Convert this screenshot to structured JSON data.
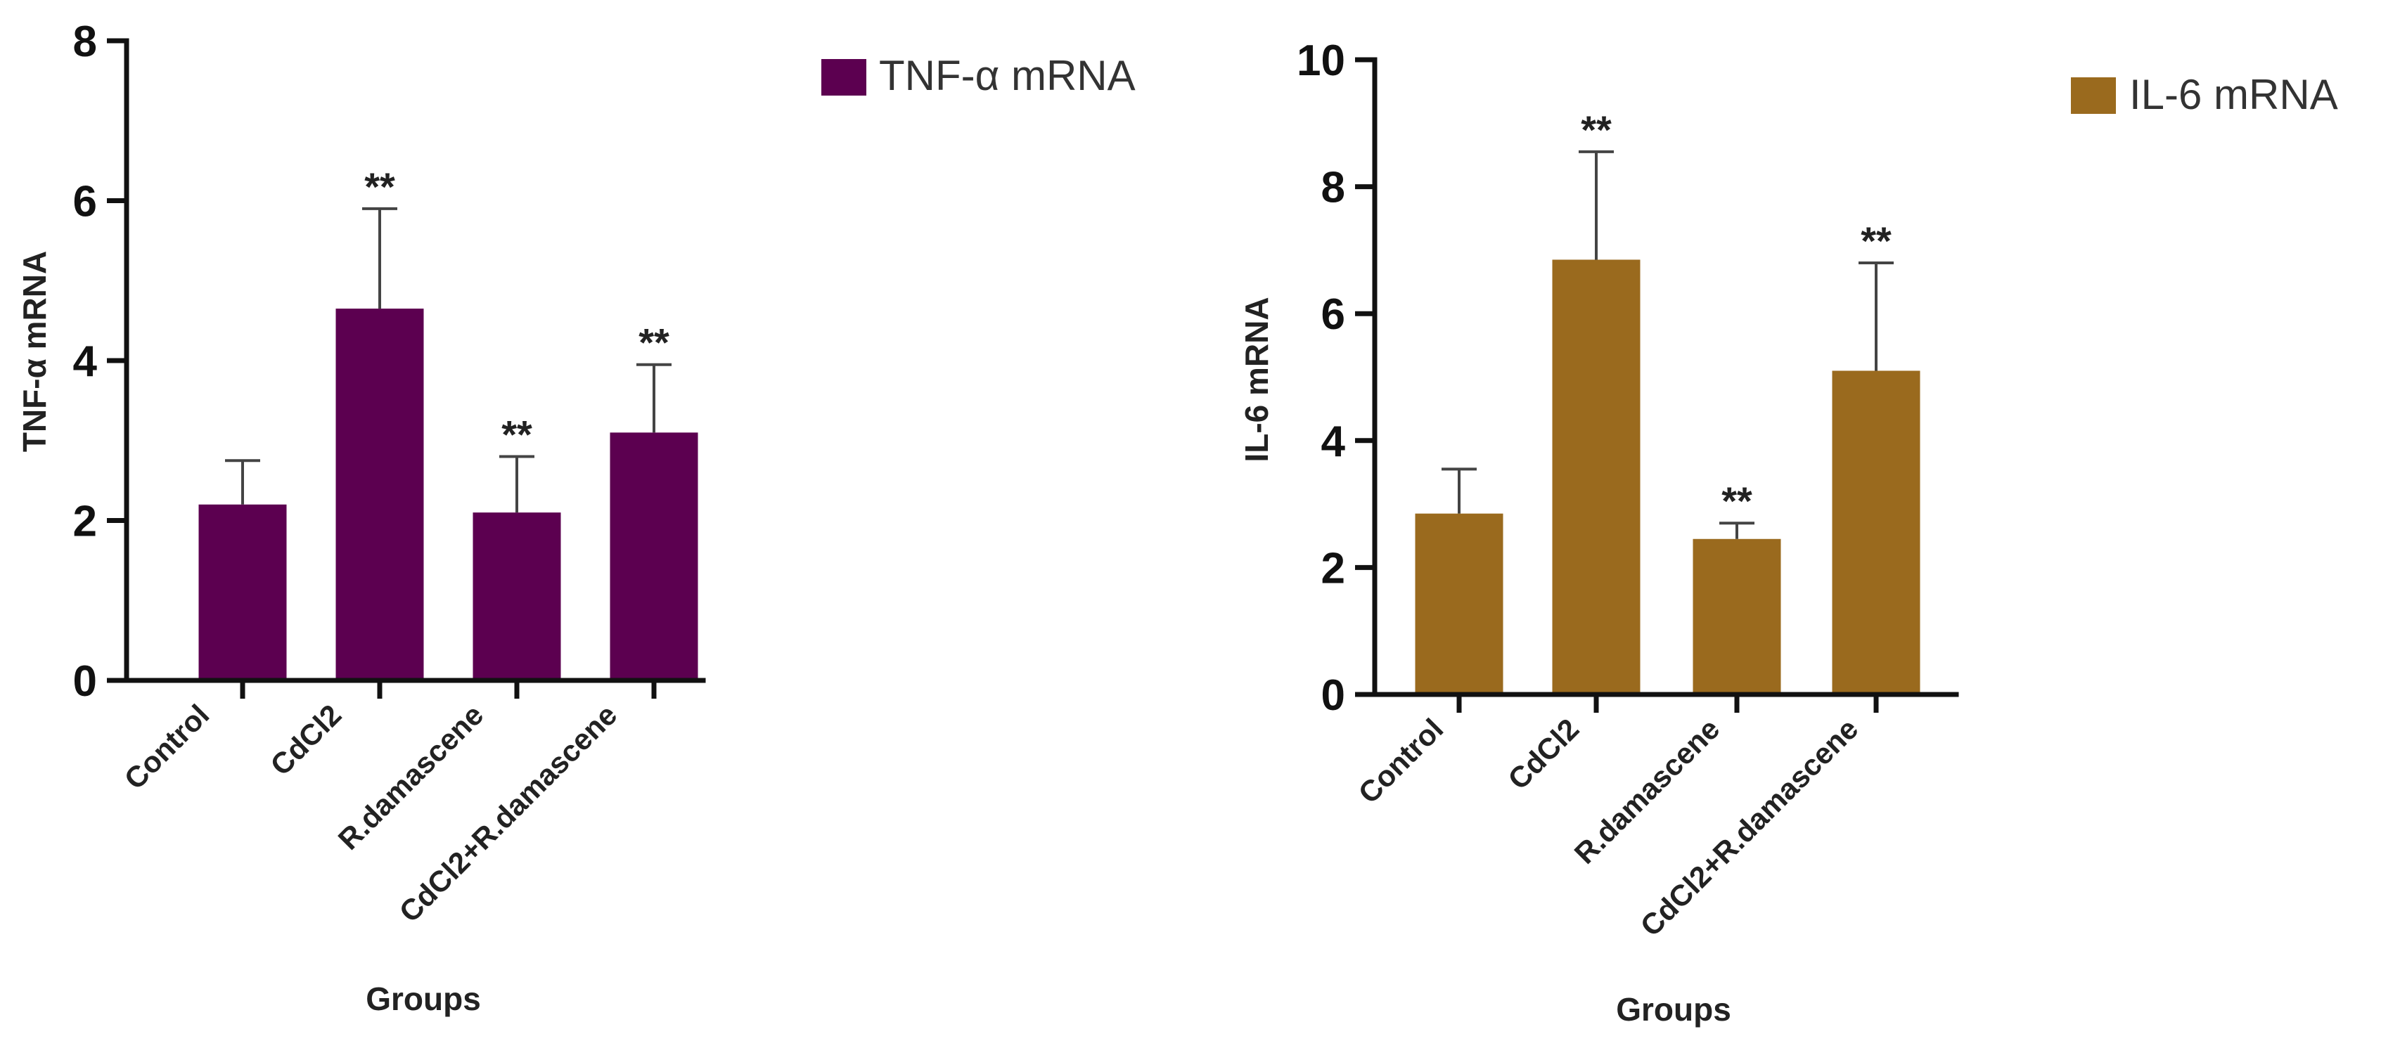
{
  "chart_data": [
    {
      "type": "bar",
      "categories": [
        "Control",
        "CdCl2",
        "R.damascene",
        "CdCl2+R.damascene"
      ],
      "series": [
        {
          "name": "TNF-α mRNA",
          "color": "#5c0050",
          "values": [
            2.2,
            4.65,
            2.1,
            3.1
          ],
          "errors": [
            0.55,
            1.25,
            0.7,
            0.85
          ],
          "significance": [
            "",
            "**",
            "**",
            "**"
          ]
        }
      ],
      "xlabel": "Groups",
      "ylabel": "TNF-α mRNA",
      "ylim": [
        0,
        8
      ],
      "yticks": [
        0,
        2,
        4,
        6,
        8
      ],
      "legend_position": "top-right",
      "grid": false
    },
    {
      "type": "bar",
      "categories": [
        "Control",
        "CdCl2",
        "R.damascene",
        "CdCl2+R.damascene"
      ],
      "series": [
        {
          "name": "IL-6 mRNA",
          "color": "#9a6a1e",
          "values": [
            2.85,
            6.85,
            2.45,
            5.1
          ],
          "errors": [
            0.7,
            1.7,
            0.25,
            1.7
          ],
          "significance": [
            "",
            "**",
            "**",
            "**"
          ]
        }
      ],
      "xlabel": "Groups",
      "ylabel": "IL-6 mRNA",
      "ylim": [
        0,
        10
      ],
      "yticks": [
        0,
        2,
        4,
        6,
        8,
        10
      ],
      "legend_position": "top-right",
      "grid": false
    }
  ]
}
